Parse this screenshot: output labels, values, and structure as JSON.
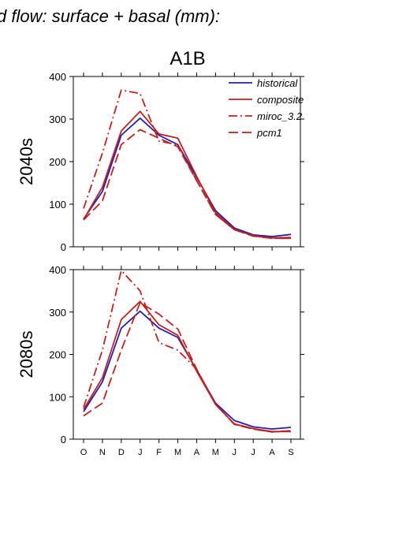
{
  "figure": {
    "title": "d flow: surface + basal (mm):",
    "subtitle": "A1B"
  },
  "colors": {
    "historical": "#2020b0",
    "composite": "#c02020",
    "miroc_3.2": "#c02020",
    "pcm1": "#c02020"
  },
  "chart_data": [
    {
      "type": "line",
      "panel_label": "2040s",
      "categories": [
        "O",
        "N",
        "D",
        "J",
        "F",
        "M",
        "A",
        "M",
        "J",
        "J",
        "A",
        "S"
      ],
      "ylim": [
        0,
        400
      ],
      "yticks": [
        "0",
        "100",
        "200",
        "300",
        "400"
      ],
      "legend": {
        "placement": "top-right"
      },
      "series": [
        {
          "name": "historical",
          "style": "solid",
          "values": [
            65,
            130,
            262,
            302,
            262,
            240,
            163,
            85,
            44,
            28,
            24,
            29
          ]
        },
        {
          "name": "composite",
          "style": "solid",
          "values": [
            64,
            140,
            272,
            318,
            265,
            255,
            165,
            80,
            41,
            26,
            21,
            22
          ]
        },
        {
          "name": "miroc_3.2",
          "style": "dashdot",
          "values": [
            90,
            220,
            368,
            360,
            248,
            240,
            155,
            76,
            40,
            25,
            20,
            20
          ]
        },
        {
          "name": "pcm1",
          "style": "dashed",
          "values": [
            63,
            108,
            240,
            275,
            255,
            235,
            155,
            76,
            40,
            25,
            20,
            20
          ]
        }
      ]
    },
    {
      "type": "line",
      "panel_label": "2080s",
      "categories": [
        "O",
        "N",
        "D",
        "J",
        "F",
        "M",
        "A",
        "M",
        "J",
        "J",
        "A",
        "S"
      ],
      "ylim": [
        0,
        400
      ],
      "yticks": [
        "0",
        "100",
        "200",
        "300",
        "400"
      ],
      "series": [
        {
          "name": "historical",
          "style": "solid",
          "values": [
            65,
            135,
            262,
            302,
            262,
            240,
            163,
            85,
            44,
            29,
            24,
            28
          ]
        },
        {
          "name": "composite",
          "style": "solid",
          "values": [
            70,
            145,
            282,
            325,
            270,
            245,
            160,
            82,
            36,
            25,
            18,
            18
          ]
        },
        {
          "name": "miroc_3.2",
          "style": "dashdot",
          "values": [
            75,
            210,
            398,
            350,
            228,
            210,
            165,
            82,
            35,
            24,
            17,
            20
          ]
        },
        {
          "name": "pcm1",
          "style": "dashed",
          "values": [
            55,
            85,
            210,
            322,
            295,
            260,
            165,
            82,
            35,
            24,
            17,
            20
          ]
        }
      ]
    }
  ]
}
